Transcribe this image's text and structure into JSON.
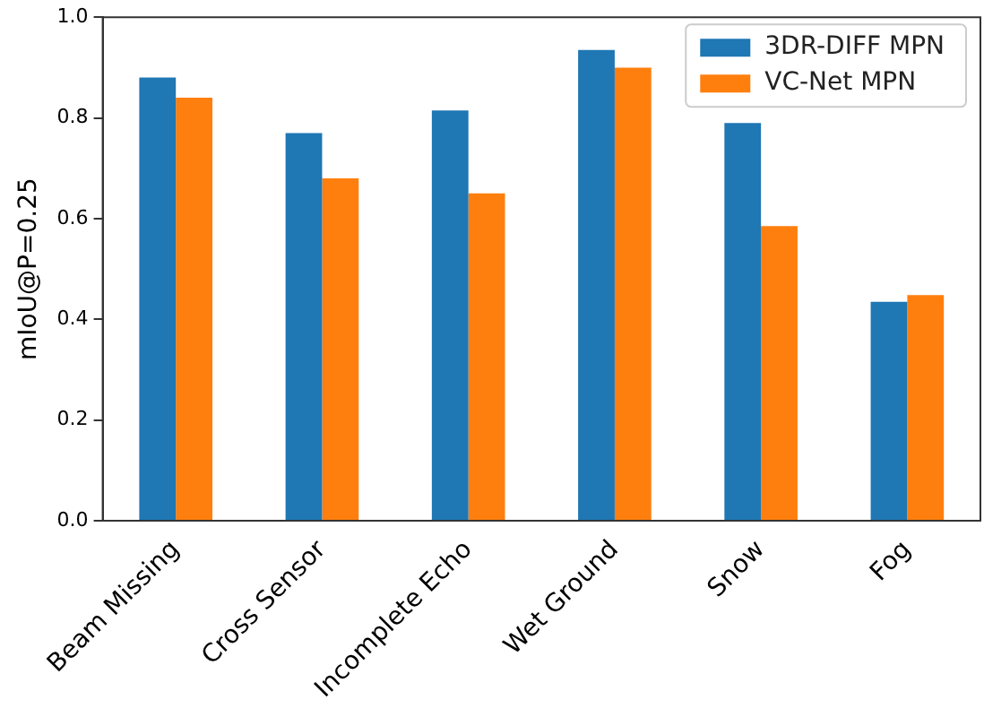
{
  "chart_data": {
    "type": "bar",
    "ylabel": "mIoU@P=0.25",
    "categories": [
      "Beam Missing",
      "Cross Sensor",
      "Incomplete Echo",
      "Wet Ground",
      "Snow",
      "Fog"
    ],
    "series": [
      {
        "name": "3DR-DIFF MPN",
        "color": "#1f77b4",
        "values": [
          0.88,
          0.77,
          0.815,
          0.935,
          0.79,
          0.435
        ]
      },
      {
        "name": "VC-Net MPN",
        "color": "#ff7f0e",
        "values": [
          0.84,
          0.68,
          0.65,
          0.9,
          0.585,
          0.448
        ]
      }
    ],
    "ylim": [
      0,
      1
    ],
    "yticks": [
      {
        "value": 0,
        "label": "0.0"
      },
      0.2,
      0.4,
      0.6,
      0.8,
      {
        "value": 1,
        "label": "1.0"
      }
    ],
    "grid": false,
    "legend": "top right"
  }
}
